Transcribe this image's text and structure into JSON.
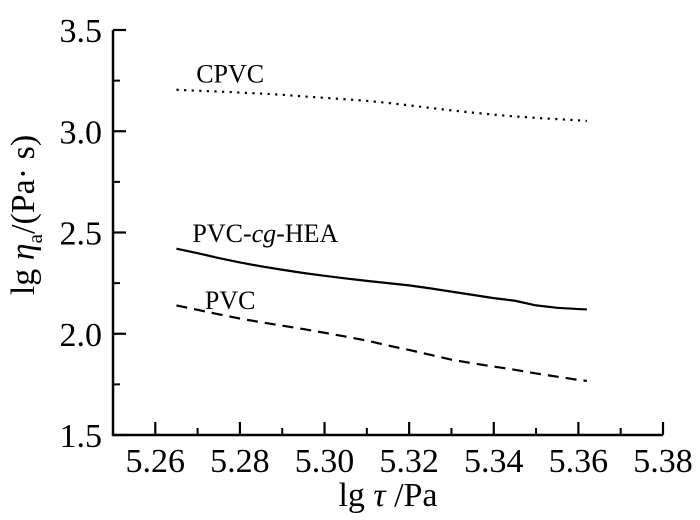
{
  "page": {
    "background": "#ffffff",
    "ink_color": "#000000"
  },
  "chart_data": {
    "type": "line",
    "title": "",
    "xlabel": "lg τ /Pa",
    "xlabel_parts": [
      {
        "t": "lg "
      },
      {
        "t": "τ",
        "italic": true
      },
      {
        "t": " /Pa"
      }
    ],
    "ylabel": "lg η_a /(Pa·s)",
    "ylabel_parts": [
      {
        "t": "lg "
      },
      {
        "t": "η",
        "italic": true
      },
      {
        "t": "a",
        "sub": true
      },
      {
        "t": "/(Pa· s)"
      }
    ],
    "xlim": [
      5.25,
      5.38
    ],
    "ylim": [
      1.5,
      3.5
    ],
    "grid": false,
    "legend_position": "inline-labels",
    "x_ticks": {
      "values": [
        5.26,
        5.28,
        5.3,
        5.32,
        5.34,
        5.36,
        5.38
      ],
      "labels": [
        "5.26",
        "5.28",
        "5.30",
        "5.32",
        "5.34",
        "5.36",
        "5.38"
      ],
      "minor_step": 0.01
    },
    "y_ticks": {
      "values": [
        1.5,
        2.0,
        2.5,
        3.0,
        3.5
      ],
      "labels": [
        "1.5",
        "2.0",
        "2.5",
        "3.0",
        "3.5"
      ],
      "minor_step": 0.25
    },
    "series": [
      {
        "name": "CPVC",
        "line_style": "dotted",
        "label_parts": [
          {
            "t": "CPVC"
          }
        ],
        "label_anchor": {
          "x": 5.2777,
          "y": 3.285
        },
        "x": [
          5.265,
          5.27,
          5.275,
          5.28,
          5.285,
          5.29,
          5.295,
          5.3,
          5.305,
          5.31,
          5.315,
          5.32,
          5.325,
          5.33,
          5.335,
          5.34,
          5.345,
          5.35,
          5.355,
          5.36,
          5.362
        ],
        "y": [
          3.205,
          3.2,
          3.196,
          3.191,
          3.186,
          3.18,
          3.172,
          3.165,
          3.158,
          3.15,
          3.14,
          3.128,
          3.115,
          3.103,
          3.092,
          3.082,
          3.073,
          3.066,
          3.06,
          3.054,
          3.051
        ]
      },
      {
        "name": "PVC-cg-HEA",
        "line_style": "solid",
        "label_parts": [
          {
            "t": "PVC-"
          },
          {
            "t": "cg",
            "italic": true
          },
          {
            "t": "-HEA"
          }
        ],
        "label_anchor": {
          "x": 5.286,
          "y": 2.497
        },
        "x": [
          5.265,
          5.27,
          5.275,
          5.28,
          5.285,
          5.29,
          5.295,
          5.3,
          5.305,
          5.31,
          5.315,
          5.32,
          5.325,
          5.33,
          5.335,
          5.34,
          5.345,
          5.35,
          5.355,
          5.36,
          5.362
        ],
        "y": [
          2.42,
          2.398,
          2.374,
          2.352,
          2.333,
          2.316,
          2.3,
          2.286,
          2.273,
          2.261,
          2.25,
          2.239,
          2.224,
          2.208,
          2.192,
          2.176,
          2.163,
          2.14,
          2.128,
          2.122,
          2.12
        ]
      },
      {
        "name": "PVC",
        "line_style": "dashed",
        "label_parts": [
          {
            "t": "PVC"
          }
        ],
        "label_anchor": {
          "x": 5.2777,
          "y": 2.167
        },
        "x": [
          5.265,
          5.27,
          5.275,
          5.28,
          5.285,
          5.29,
          5.295,
          5.3,
          5.305,
          5.31,
          5.315,
          5.32,
          5.325,
          5.33,
          5.335,
          5.34,
          5.345,
          5.35,
          5.355,
          5.36,
          5.362
        ],
        "y": [
          2.14,
          2.118,
          2.096,
          2.075,
          2.057,
          2.04,
          2.023,
          2.005,
          1.986,
          1.966,
          1.942,
          1.92,
          1.896,
          1.872,
          1.854,
          1.838,
          1.822,
          1.804,
          1.788,
          1.772,
          1.767
        ]
      }
    ]
  }
}
